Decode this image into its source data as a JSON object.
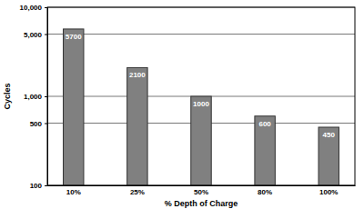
{
  "chart_data": {
    "type": "bar",
    "x_label": "% Depth of Charge",
    "y_label": "Cycles",
    "categories": [
      "10%",
      "25%",
      "50%",
      "80%",
      "100%"
    ],
    "values": [
      5700,
      2100,
      1000,
      600,
      450
    ],
    "color": "#808080",
    "log": "y",
    "ylim": [
      100,
      10000
    ],
    "yticks": [
      100,
      500,
      {
        "value": 1000,
        "label": "1,000"
      },
      {
        "value": 5000,
        "label": "5,000"
      },
      {
        "value": 10000,
        "label": "10,000"
      }
    ],
    "grid": true,
    "data_labels": true
  }
}
